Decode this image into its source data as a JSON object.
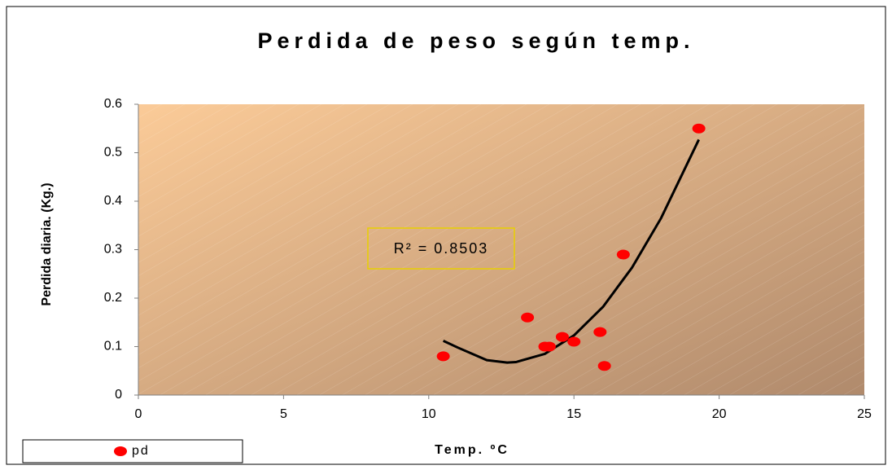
{
  "chart_data": {
    "type": "scatter",
    "title": "Perdida de peso según temp.",
    "x_label": "Temp. ºC",
    "y_label": "Perdida diaria. (Kg.)",
    "series": [
      {
        "name": "pd",
        "color": "#ff0000",
        "x": [
          10.5,
          13.4,
          14.0,
          14.15,
          14.6,
          15.0,
          15.9,
          16.05,
          16.7,
          19.3
        ],
        "values": [
          0.08,
          0.16,
          0.1,
          0.1,
          0.12,
          0.11,
          0.13,
          0.06,
          0.29,
          0.55
        ]
      }
    ],
    "trendline": {
      "color": "#000000",
      "x": [
        10.5,
        11,
        12,
        12.7,
        13,
        14,
        15,
        16,
        17,
        18,
        19.3
      ],
      "values": [
        0.112,
        0.098,
        0.072,
        0.067,
        0.068,
        0.085,
        0.123,
        0.182,
        0.263,
        0.365,
        0.527
      ]
    },
    "annotation": "R² = 0.8503",
    "xlim": [
      0,
      25
    ],
    "xticks": [
      0,
      5,
      10,
      15,
      20,
      25
    ],
    "ylim": [
      0,
      0.6
    ],
    "yticks": [
      0,
      0.1,
      0.2,
      0.3,
      0.4,
      0.5,
      0.6
    ],
    "grid": false,
    "legend": "bottom-left"
  }
}
